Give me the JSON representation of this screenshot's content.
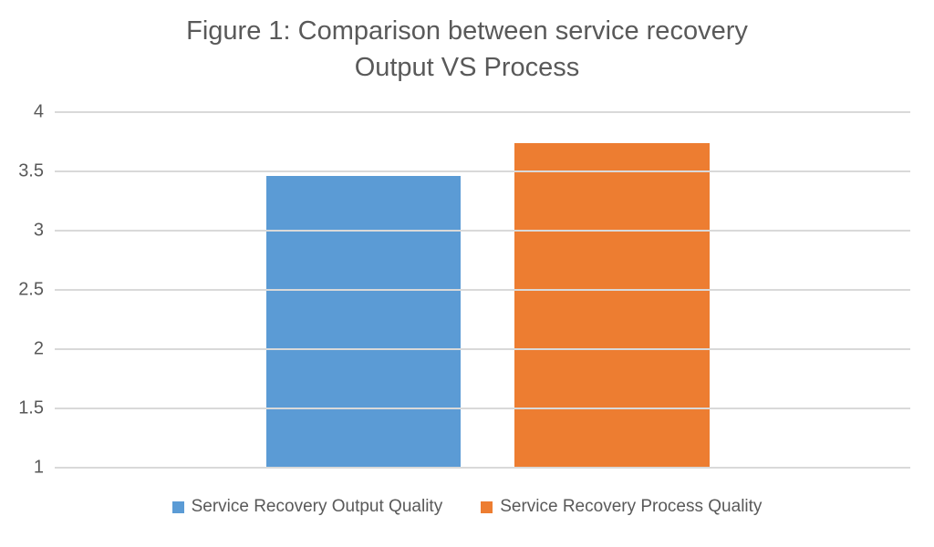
{
  "chart_data": {
    "type": "bar",
    "title": "Figure 1: Comparison between service recovery Output VS Process",
    "title_lines": [
      "Figure 1: Comparison between service recovery",
      "Output VS Process"
    ],
    "categories": [
      ""
    ],
    "series": [
      {
        "name": "Service Recovery Output Quality",
        "value": 3.46,
        "color": "#5B9BD5"
      },
      {
        "name": "Service Recovery Process Quality",
        "value": 3.74,
        "color": "#ED7D31"
      }
    ],
    "xlabel": "",
    "ylabel": "",
    "ylim": [
      1,
      4
    ],
    "yticks": [
      "4",
      "3.5",
      "3",
      "2.5",
      "2",
      "1.5",
      "1"
    ],
    "grid": true,
    "legend_position": "bottom",
    "text_color": "#595959",
    "gridline_color": "#D9D9D9",
    "background": "#FFFFFF"
  }
}
